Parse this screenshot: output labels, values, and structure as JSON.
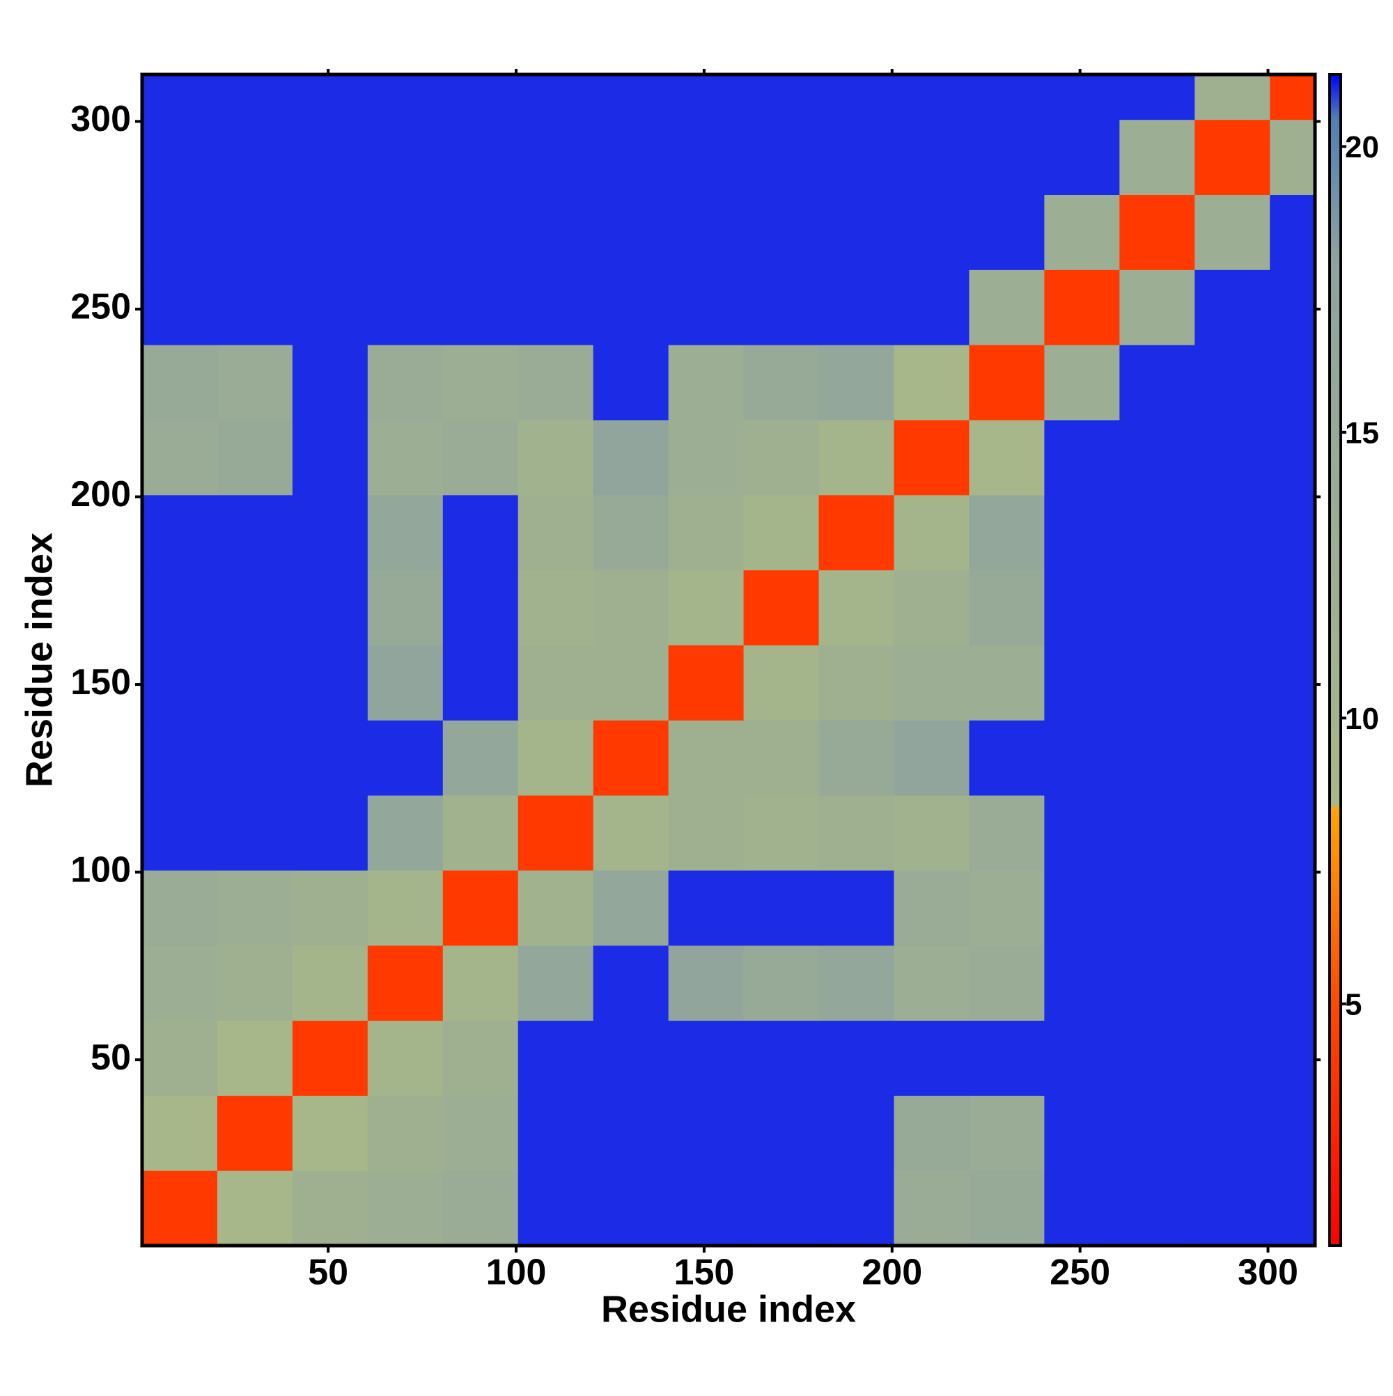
{
  "chart_data": {
    "type": "heatmap",
    "xlabel": "Residue index",
    "ylabel": "Residue index",
    "x_edges": [
      0.5,
      20.5,
      40.5,
      60.5,
      80.5,
      100.5,
      120.5,
      140.5,
      160.5,
      180.5,
      200.5,
      220.5,
      240.5,
      260.5,
      280.5,
      300.5,
      312.5
    ],
    "y_edges": [
      0.5,
      20.5,
      40.5,
      60.5,
      80.5,
      100.5,
      120.5,
      140.5,
      160.5,
      180.5,
      200.5,
      220.5,
      240.5,
      260.5,
      280.5,
      300.5,
      312.5
    ],
    "z": [
      [
        4,
        9,
        12,
        13,
        14,
        21,
        21,
        21,
        21,
        21,
        14,
        15,
        21,
        21,
        21,
        21
      ],
      [
        9,
        4,
        9,
        12,
        13,
        21,
        21,
        21,
        21,
        21,
        15,
        14,
        21,
        21,
        21,
        21
      ],
      [
        12,
        9,
        4,
        10,
        12,
        21,
        21,
        21,
        21,
        21,
        21,
        21,
        21,
        21,
        21,
        21
      ],
      [
        13,
        12,
        10,
        4,
        10,
        16,
        21,
        17,
        15,
        16,
        13,
        14,
        21,
        21,
        21,
        21
      ],
      [
        14,
        13,
        12,
        10,
        4,
        11,
        16,
        21,
        21,
        21,
        14,
        13,
        21,
        21,
        21,
        21
      ],
      [
        21,
        21,
        21,
        16,
        11,
        4,
        10,
        12,
        11,
        12,
        11,
        14,
        21,
        21,
        21,
        21
      ],
      [
        21,
        21,
        21,
        21,
        16,
        10,
        4,
        12,
        12,
        15,
        17,
        21,
        21,
        21,
        21,
        21
      ],
      [
        21,
        21,
        21,
        17,
        21,
        12,
        12,
        4,
        10,
        12,
        13,
        13,
        21,
        21,
        21,
        21
      ],
      [
        21,
        21,
        21,
        15,
        21,
        11,
        12,
        10,
        4,
        10,
        12,
        15,
        21,
        21,
        21,
        21
      ],
      [
        21,
        21,
        21,
        16,
        21,
        12,
        15,
        12,
        10,
        4,
        10,
        16,
        21,
        21,
        21,
        21
      ],
      [
        14,
        15,
        21,
        13,
        14,
        11,
        17,
        13,
        12,
        10,
        4,
        9,
        21,
        21,
        21,
        21
      ],
      [
        15,
        14,
        21,
        14,
        13,
        14,
        21,
        13,
        15,
        16,
        9,
        4,
        13,
        21,
        21,
        21
      ],
      [
        21,
        21,
        21,
        21,
        21,
        21,
        21,
        21,
        21,
        21,
        21,
        13,
        4,
        13,
        21,
        21
      ],
      [
        21,
        21,
        21,
        21,
        21,
        21,
        21,
        21,
        21,
        21,
        21,
        21,
        13,
        4,
        13,
        21
      ],
      [
        21,
        21,
        21,
        21,
        21,
        21,
        21,
        21,
        21,
        21,
        21,
        21,
        21,
        13,
        4,
        12
      ],
      [
        21,
        21,
        21,
        21,
        21,
        21,
        21,
        21,
        21,
        21,
        21,
        21,
        21,
        21,
        12,
        4
      ]
    ],
    "xlim": [
      0.5,
      312.5
    ],
    "ylim": [
      0.5,
      312.5
    ],
    "xticks": [
      50,
      100,
      150,
      200,
      250,
      300
    ],
    "yticks": [
      50,
      100,
      150,
      200,
      250,
      300
    ],
    "zlim": [
      0.77,
      21.26
    ],
    "zticks": [
      5,
      10,
      15,
      20
    ],
    "colorscale": [
      [
        0.77,
        "#ff0000"
      ],
      [
        5,
        "#ff4a00"
      ],
      [
        8.4,
        "#ffa500"
      ],
      [
        8.5,
        "#a8b888"
      ],
      [
        18,
        "#8fa3a0"
      ],
      [
        20.5,
        "#4f7fb5"
      ],
      [
        21.26,
        "#0000ff"
      ]
    ]
  }
}
